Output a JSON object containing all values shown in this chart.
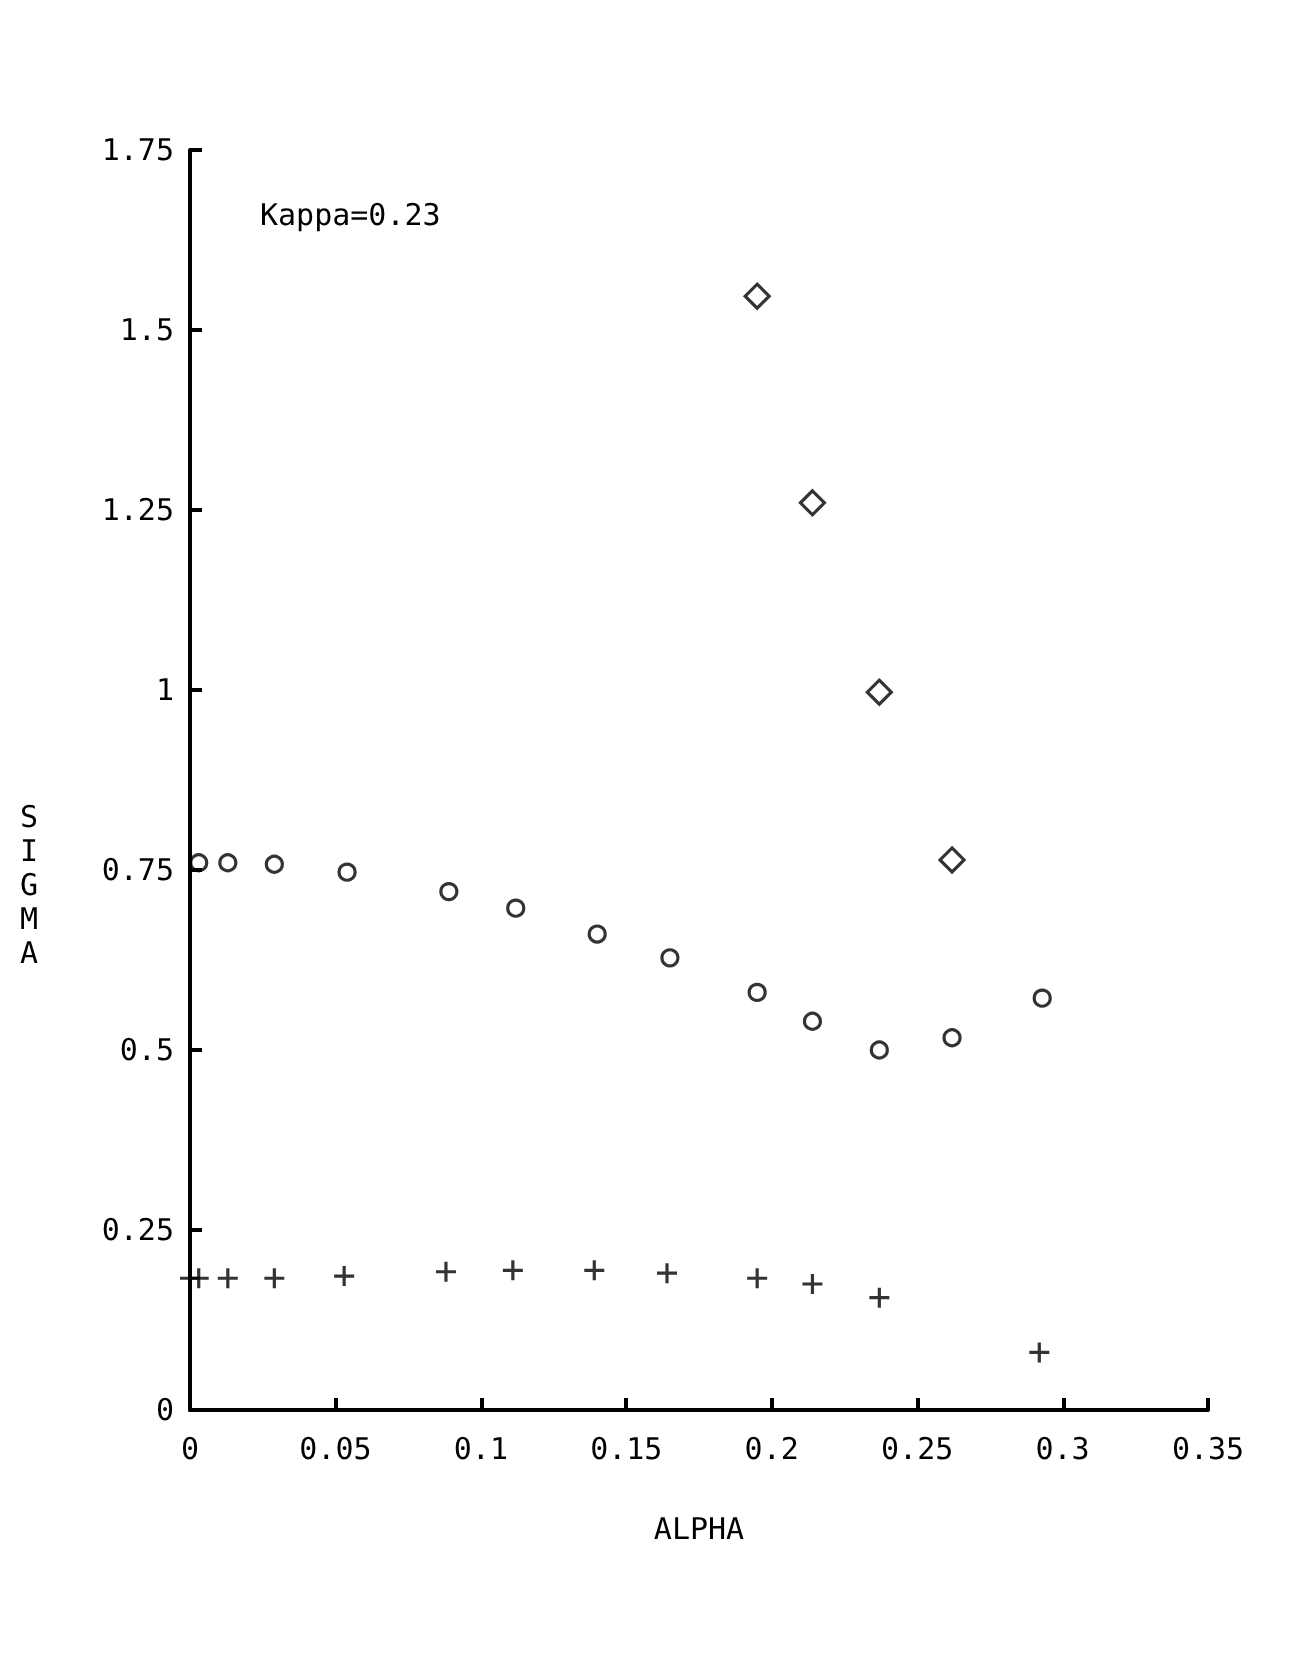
{
  "chart_data": {
    "type": "scatter",
    "xlabel": "ALPHA",
    "ylabel": "SIGMA",
    "annotations": [
      "Kappa=0.23"
    ],
    "xlim": [
      0,
      0.35
    ],
    "xticks": [
      0,
      0.05,
      0.1,
      0.15,
      0.2,
      0.25,
      0.3,
      0.35
    ],
    "ylim": [
      0,
      1.75
    ],
    "yticks": [
      0,
      0.25,
      0.5,
      0.75,
      1,
      1.25,
      1.5,
      1.75
    ],
    "grid": false,
    "series": [
      {
        "color": "#000000",
        "marker": "circle",
        "x": [
          0.003,
          0.013,
          0.029,
          0.054,
          0.089,
          0.112,
          0.14,
          0.165,
          0.195,
          0.214,
          0.237,
          0.262,
          0.293
        ],
        "values": [
          0.76,
          0.76,
          0.758,
          0.747,
          0.72,
          0.697,
          0.661,
          0.628,
          0.58,
          0.54,
          0.5,
          0.517,
          0.572
        ]
      },
      {
        "color": "#000000",
        "marker": "diamond",
        "x": [
          0.195,
          0.214,
          0.237,
          0.262
        ],
        "values": [
          1.547,
          1.26,
          0.997,
          0.764
        ]
      },
      {
        "color": "#000000",
        "marker": "cross",
        "x": [
          0,
          0.003,
          0.013,
          0.029,
          0.053,
          0.088,
          0.111,
          0.139,
          0.164,
          0.195,
          0.214,
          0.237,
          0.292
        ],
        "values": [
          0.183,
          0.183,
          0.183,
          0.183,
          0.186,
          0.192,
          0.194,
          0.194,
          0.19,
          0.183,
          0.175,
          0.156,
          0.08
        ]
      }
    ]
  }
}
